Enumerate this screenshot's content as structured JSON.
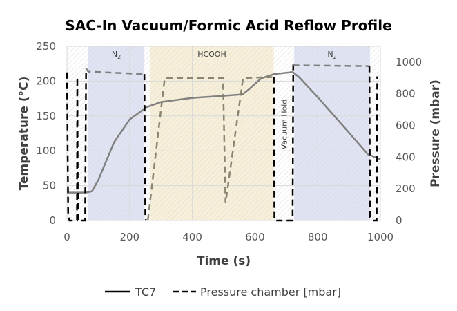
{
  "chart_data": {
    "type": "line",
    "title": "SAC-In Vacuum/Formic Acid Reflow Profile",
    "xlabel": "Time (s)",
    "ylabel": "Temperature (°C)",
    "y2label": "Pressure (mbar)",
    "xlim": [
      0,
      1000
    ],
    "ylim": [
      0,
      250
    ],
    "y2lim": [
      0,
      1100
    ],
    "xticks": [
      "0",
      "200",
      "400",
      "600",
      "800",
      "1000"
    ],
    "yticks": [
      "0",
      "50",
      "100",
      "150",
      "200",
      "250"
    ],
    "y2ticks": [
      "0",
      "200",
      "400",
      "600",
      "800",
      "1000"
    ],
    "grid": true,
    "legend_position": "bottom",
    "regions": [
      {
        "label": "",
        "start": 0,
        "end": 68,
        "color": "#ffffff"
      },
      {
        "label": "N",
        "sub": "2",
        "start": 68,
        "end": 247,
        "color": "#dfe3f3"
      },
      {
        "label": "HCOOH",
        "start": 265,
        "end": 660,
        "color": "#f7efd8"
      },
      {
        "label": "Vacuum Hold",
        "start": 660,
        "end": 725,
        "color": "#ffffff",
        "vertical": true
      },
      {
        "label": "N",
        "sub": "2",
        "start": 725,
        "end": 967,
        "color": "#dfe3f3"
      }
    ],
    "series": [
      {
        "name": "TC7",
        "axis": "left",
        "style": "solid",
        "color": "#808080",
        "points": [
          [
            0,
            40
          ],
          [
            60,
            40
          ],
          [
            80,
            42
          ],
          [
            100,
            58
          ],
          [
            150,
            112
          ],
          [
            200,
            145
          ],
          [
            240,
            158
          ],
          [
            250,
            162
          ],
          [
            300,
            170
          ],
          [
            400,
            176
          ],
          [
            500,
            179
          ],
          [
            560,
            181
          ],
          [
            580,
            188
          ],
          [
            620,
            204
          ],
          [
            660,
            210
          ],
          [
            720,
            213
          ],
          [
            740,
            206
          ],
          [
            800,
            177
          ],
          [
            900,
            126
          ],
          [
            960,
            95
          ],
          [
            1000,
            88
          ]
        ]
      },
      {
        "name": "Pressure chamber [mbar]",
        "axis": "right",
        "style": "dashed",
        "segments": [
          {
            "color": "#000000",
            "points": [
              [
                0,
                935
              ],
              [
                4,
                40
              ],
              [
                8,
                0
              ],
              [
                32,
                0
              ],
              [
                33,
                905
              ],
              [
                35,
                0
              ],
              [
                58,
                0
              ],
              [
                61,
                960
              ]
            ]
          },
          {
            "color": "#7f7f7f",
            "points": [
              [
                61,
                960
              ],
              [
                68,
                940
              ],
              [
                247,
                925
              ]
            ]
          },
          {
            "color": "#000000",
            "points": [
              [
                247,
                925
              ],
              [
                250,
                20
              ],
              [
                252,
                0
              ]
            ]
          },
          {
            "color": "#8a8570",
            "points": [
              [
                258,
                0
              ],
              [
                312,
                900
              ],
              [
                498,
                900
              ],
              [
                506,
                110
              ],
              [
                562,
                900
              ],
              [
                655,
                905
              ]
            ]
          },
          {
            "color": "#000000",
            "points": [
              [
                660,
                905
              ],
              [
                662,
                0
              ],
              [
                720,
                0
              ],
              [
                722,
                985
              ]
            ]
          },
          {
            "color": "#7f7f7f",
            "points": [
              [
                722,
                985
              ],
              [
                730,
                980
              ],
              [
                965,
                975
              ]
            ]
          },
          {
            "color": "#000000",
            "points": [
              [
                965,
                975
              ],
              [
                967,
                20
              ],
              [
                975,
                0
              ],
              [
                988,
                0
              ],
              [
                990,
                910
              ]
            ]
          }
        ]
      }
    ]
  }
}
